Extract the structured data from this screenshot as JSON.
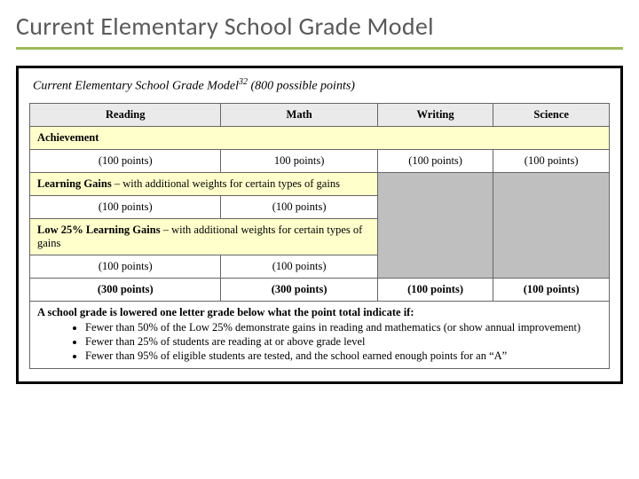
{
  "pageTitle": "Current Elementary School Grade Model",
  "caption": {
    "prefix": "Current Elementary School Grade Model",
    "sup": "32",
    "suffix": " (800 possible points)"
  },
  "columns": {
    "reading": "Reading",
    "math": "Math",
    "writing": "Writing",
    "science": "Science"
  },
  "sections": {
    "achievement": {
      "label": "Achievement",
      "note": ""
    },
    "learningGains": {
      "label": "Learning Gains",
      "note": " – with additional weights for certain types of gains"
    },
    "low25": {
      "label": "Low 25% Learning Gains",
      "note": " – with additional weights for certain types of gains"
    }
  },
  "points": {
    "achievement": {
      "reading": "(100 points)",
      "math": "100 points)",
      "writing": "(100 points)",
      "science": "(100 points)"
    },
    "learningGains": {
      "reading": "(100 points)",
      "math": "(100 points)"
    },
    "low25": {
      "reading": "(100 points)",
      "math": "(100 points)"
    },
    "totals": {
      "reading": "(300 points)",
      "math": "(300 points)",
      "writing": "(100 points)",
      "science": "(100 points)"
    }
  },
  "footer": {
    "heading": "A school grade is lowered one letter grade below what the point total indicate if:",
    "bullets": [
      "Fewer than 50% of the Low 25% demonstrate gains in reading and mathematics (or show annual improvement)",
      "Fewer than 25% of students are reading at or above grade level",
      "Fewer than 95% of eligible students are tested, and the school earned enough points for an “A”"
    ]
  },
  "colors": {
    "accentRule": "#9bbb59",
    "bandBg": "#ffffcc",
    "headerBg": "#eaeaea",
    "shadeBg": "#bfbfbf",
    "titleColor": "#5a5a5a"
  }
}
